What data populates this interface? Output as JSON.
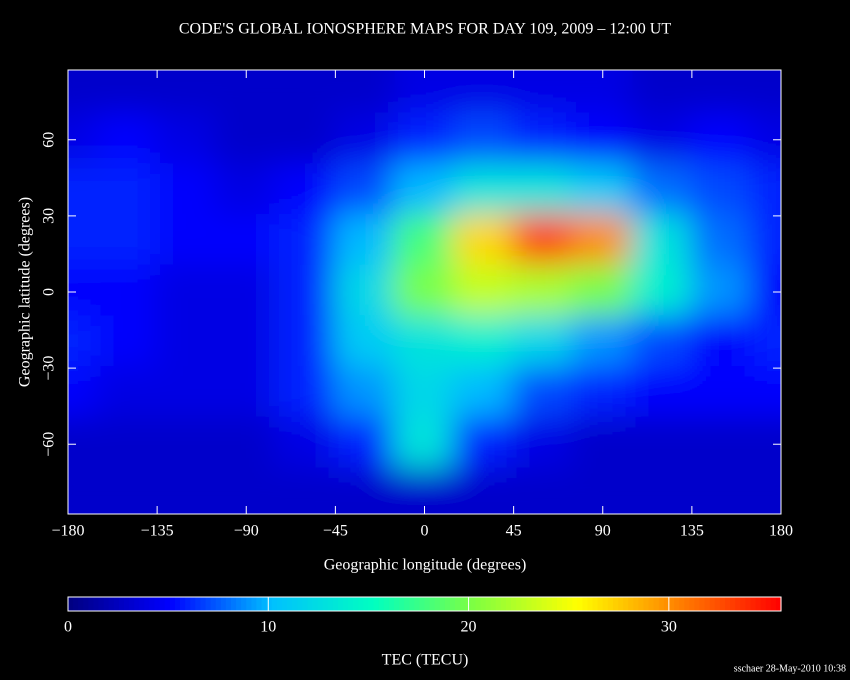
{
  "chart_data": {
    "type": "heatmap",
    "title": "CODE'S GLOBAL IONOSPHERE MAPS FOR DAY 109, 2009 – 12:00 UT",
    "xlabel": "Geographic longitude (degrees)",
    "ylabel": "Geographic latitude (degrees)",
    "xlim": [
      -180,
      180
    ],
    "ylim": [
      -87.5,
      87.5
    ],
    "xticks": [
      {
        "value": -180,
        "label": "−180"
      },
      {
        "value": -135,
        "label": "−135"
      },
      {
        "value": -90,
        "label": "−90"
      },
      {
        "value": -45,
        "label": "−45"
      },
      0,
      45,
      90,
      135,
      180
    ],
    "yticks": [
      60,
      30,
      0,
      {
        "value": -30,
        "label": "−30"
      },
      {
        "value": -60,
        "label": "−60"
      }
    ],
    "tec": {
      "lons": [
        -180,
        -150,
        -120,
        -90,
        -60,
        -30,
        0,
        30,
        60,
        90,
        120,
        150,
        180
      ],
      "lats": [
        80,
        60,
        40,
        20,
        0,
        -20,
        -40,
        -60,
        -80
      ],
      "values": [
        [
          3,
          3,
          3,
          3,
          3,
          3,
          4,
          4,
          4,
          4,
          3,
          3,
          3
        ],
        [
          4,
          5,
          4,
          3,
          3,
          4,
          6,
          7,
          6,
          5,
          4,
          5,
          4
        ],
        [
          6,
          6,
          5,
          4,
          5,
          7,
          10,
          13,
          13,
          11,
          8,
          7,
          6
        ],
        [
          6,
          6,
          5,
          5,
          6,
          10,
          18,
          27,
          33,
          30,
          13,
          8,
          6
        ],
        [
          5,
          5,
          4,
          4,
          6,
          12,
          20,
          23,
          22,
          20,
          14,
          9,
          5
        ],
        [
          6,
          5,
          4,
          4,
          6,
          11,
          13,
          14,
          12,
          9,
          7,
          5,
          6
        ],
        [
          5,
          4,
          4,
          4,
          6,
          9,
          12,
          10,
          7,
          6,
          5,
          5,
          5
        ],
        [
          3,
          3,
          3,
          3,
          4,
          6,
          13,
          6,
          4,
          3,
          3,
          3,
          3
        ],
        [
          3,
          3,
          3,
          3,
          3,
          3,
          3,
          3,
          3,
          3,
          3,
          3,
          3
        ]
      ]
    },
    "colormap": [
      "#000080",
      "#0000ff",
      "#00c0ff",
      "#00ffc0",
      "#80ff40",
      "#ffff00",
      "#ff8000",
      "#ff0000"
    ],
    "colorbar": {
      "label": "TEC (TECU)",
      "clim": [
        0,
        35.6
      ],
      "ticks": [
        0,
        10,
        20,
        30
      ]
    },
    "footer": "sschaer 28-May-2010 10:38"
  }
}
